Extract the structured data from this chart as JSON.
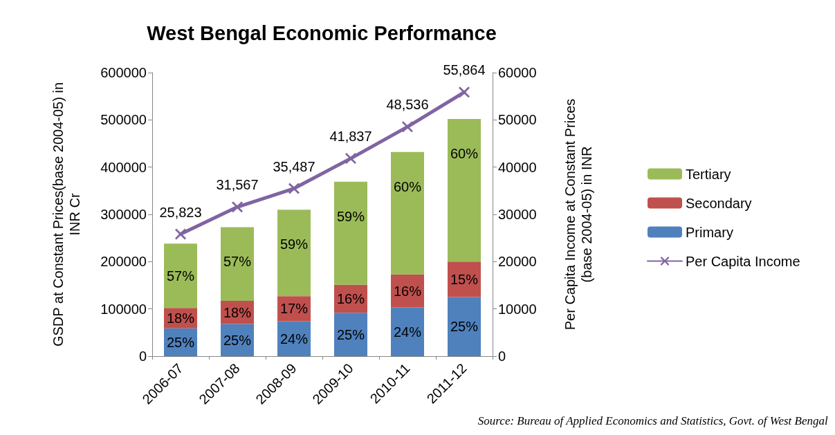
{
  "chart_data": {
    "type": "bar",
    "title": "West Bengal Economic Performance",
    "ylabel": "GSDP at Constant Prices(base 2004-05) in INR Cr",
    "y2label": "Per Capita Income at Constant Prices (base 2004-05) in INR",
    "categories": [
      "2006-07",
      "2007-08",
      "2008-09",
      "2009-10",
      "2010-11",
      "2011-12"
    ],
    "stacked": true,
    "series": [
      {
        "name": "Primary",
        "color": "#4f81bd",
        "values": [
          59000,
          68000,
          74000,
          92000,
          103000,
          125000
        ]
      },
      {
        "name": "Secondary",
        "color": "#c0504d",
        "values": [
          43000,
          49000,
          53000,
          59000,
          70000,
          75000
        ]
      },
      {
        "name": "Tertiary",
        "color": "#9bbb59",
        "values": [
          136000,
          156000,
          183000,
          218000,
          259000,
          302000
        ]
      },
      {
        "name": "Per Capita Income",
        "type": "line",
        "axis": "y2",
        "color": "#8064a2",
        "values": [
          25823,
          31567,
          35487,
          41837,
          48536,
          55864
        ],
        "value_labels": [
          "25,823",
          "31,567",
          "35,487",
          "41,837",
          "48,536",
          "55,864"
        ]
      }
    ],
    "ylim": [
      0,
      600000
    ],
    "yticks": [
      0,
      100000,
      200000,
      300000,
      400000,
      500000,
      600000
    ],
    "y2lim": [
      0,
      60000
    ],
    "y2ticks": [
      0,
      10000,
      20000,
      30000,
      40000,
      50000,
      60000
    ],
    "grid": false,
    "legend": "right",
    "marker": "cross",
    "annotations": [
      "Source: Bureau of Applied Economics and Statistics, Govt. of West Bengal",
      {
        "text": "25%",
        "x": "2006-07",
        "y": 59000
      },
      {
        "text": "18%",
        "x": "2006-07",
        "y": 102000
      },
      {
        "text": "57%",
        "x": "2006-07",
        "y": 238000
      },
      {
        "text": "25%",
        "x": "2007-08",
        "y": 68000
      },
      {
        "text": "18%",
        "x": "2007-08",
        "y": 117000
      },
      {
        "text": "57%",
        "x": "2007-08",
        "y": 273000
      },
      {
        "text": "24%",
        "x": "2008-09",
        "y": 74000
      },
      {
        "text": "17%",
        "x": "2008-09",
        "y": 127000
      },
      {
        "text": "59%",
        "x": "2008-09",
        "y": 310000
      },
      {
        "text": "25%",
        "x": "2009-10",
        "y": 92000
      },
      {
        "text": "16%",
        "x": "2009-10",
        "y": 151000
      },
      {
        "text": "59%",
        "x": "2009-10",
        "y": 369000
      },
      {
        "text": "24%",
        "x": "2010-11",
        "y": 103000
      },
      {
        "text": "16%",
        "x": "2010-11",
        "y": 173000
      },
      {
        "text": "60%",
        "x": "2010-11",
        "y": 432000
      },
      {
        "text": "25%",
        "x": "2011-12",
        "y": 125000
      },
      {
        "text": "15%",
        "x": "2011-12",
        "y": 200000
      },
      {
        "text": "60%",
        "x": "2011-12",
        "y": 502000
      }
    ]
  }
}
